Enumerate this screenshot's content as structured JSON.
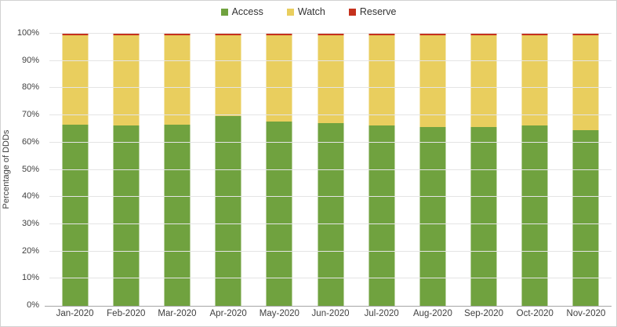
{
  "chart_data": {
    "type": "bar",
    "stacked": true,
    "title": "",
    "xlabel": "",
    "ylabel": "Percentage of DDDs",
    "ylim": [
      0,
      100
    ],
    "grid": true,
    "legend_position": "top-center",
    "categories": [
      "Jan-2020",
      "Feb-2020",
      "Mar-2020",
      "Apr-2020",
      "May-2020",
      "Jun-2020",
      "Jul-2020",
      "Aug-2020",
      "Sep-2020",
      "Oct-2020",
      "Nov-2020"
    ],
    "series": [
      {
        "name": "Access",
        "color": "#70A23F",
        "values": [
          66.5,
          66.4,
          66.6,
          69.7,
          67.6,
          67.2,
          66.3,
          65.6,
          65.8,
          66.2,
          64.7
        ]
      },
      {
        "name": "Watch",
        "color": "#E9CE5E",
        "values": [
          32.8,
          32.9,
          32.7,
          29.6,
          31.7,
          32.1,
          33.0,
          33.7,
          33.5,
          33.1,
          34.6
        ]
      },
      {
        "name": "Reserve",
        "color": "#C5311D",
        "values": [
          0.7,
          0.7,
          0.7,
          0.7,
          0.7,
          0.7,
          0.7,
          0.7,
          0.7,
          0.7,
          0.7
        ]
      }
    ],
    "ytick_labels": [
      "0%",
      "10%",
      "20%",
      "30%",
      "40%",
      "50%",
      "60%",
      "70%",
      "80%",
      "90%",
      "100%"
    ]
  },
  "colors": {
    "gridline": "#e4e4e4",
    "axis_line": "#a6a6a6",
    "tick_text": "#3f3f3f"
  }
}
